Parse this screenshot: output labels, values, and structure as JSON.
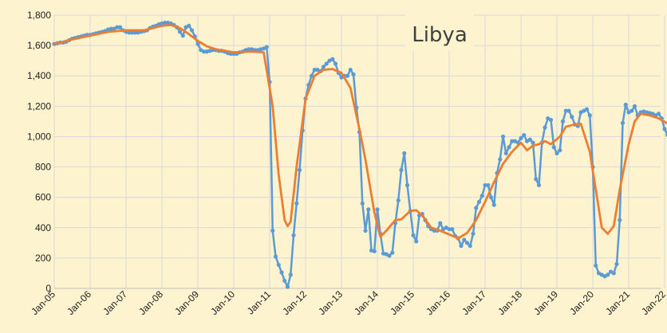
{
  "chart_data": {
    "type": "line",
    "title": "Libya",
    "xlabel": "",
    "ylabel": "",
    "ylim": [
      0,
      1800
    ],
    "yticks": [
      0,
      200,
      400,
      600,
      800,
      1000,
      1200,
      1400,
      1600,
      1800
    ],
    "ytick_labels": [
      "0",
      "200",
      "400",
      "600",
      "800",
      "1,000",
      "1,200",
      "1,400",
      "1,600",
      "1,800"
    ],
    "x_range": [
      "2005-01",
      "2022-06"
    ],
    "xtick_labels": [
      "Jan-05",
      "Jan-06",
      "Jan-07",
      "Jan-08",
      "Jan-09",
      "Jan-10",
      "Jan-11",
      "Jan-12",
      "Jan-13",
      "Jan-14",
      "Jan-15",
      "Jan-16",
      "Jan-17",
      "Jan-18",
      "Jan-19",
      "Jan-20",
      "Jan-21",
      "Jan-22"
    ],
    "grid": true,
    "legend": "none",
    "series": [
      {
        "color": "#5b9bd5",
        "markers": true,
        "points": [
          [
            "2005-01",
            1610
          ],
          [
            "2005-02",
            1615
          ],
          [
            "2005-03",
            1620
          ],
          [
            "2005-04",
            1620
          ],
          [
            "2005-05",
            1625
          ],
          [
            "2005-06",
            1635
          ],
          [
            "2005-07",
            1645
          ],
          [
            "2005-08",
            1650
          ],
          [
            "2005-09",
            1655
          ],
          [
            "2005-10",
            1660
          ],
          [
            "2005-11",
            1665
          ],
          [
            "2005-12",
            1670
          ],
          [
            "2006-01",
            1670
          ],
          [
            "2006-02",
            1675
          ],
          [
            "2006-03",
            1680
          ],
          [
            "2006-04",
            1685
          ],
          [
            "2006-05",
            1690
          ],
          [
            "2006-06",
            1695
          ],
          [
            "2006-07",
            1705
          ],
          [
            "2006-08",
            1710
          ],
          [
            "2006-09",
            1710
          ],
          [
            "2006-10",
            1720
          ],
          [
            "2006-11",
            1720
          ],
          [
            "2006-12",
            1700
          ],
          [
            "2007-01",
            1690
          ],
          [
            "2007-02",
            1685
          ],
          [
            "2007-03",
            1685
          ],
          [
            "2007-04",
            1685
          ],
          [
            "2007-05",
            1685
          ],
          [
            "2007-06",
            1690
          ],
          [
            "2007-07",
            1695
          ],
          [
            "2007-08",
            1700
          ],
          [
            "2007-09",
            1715
          ],
          [
            "2007-10",
            1725
          ],
          [
            "2007-11",
            1730
          ],
          [
            "2007-12",
            1740
          ],
          [
            "2008-01",
            1745
          ],
          [
            "2008-02",
            1750
          ],
          [
            "2008-03",
            1750
          ],
          [
            "2008-04",
            1745
          ],
          [
            "2008-05",
            1735
          ],
          [
            "2008-06",
            1720
          ],
          [
            "2008-07",
            1690
          ],
          [
            "2008-08",
            1665
          ],
          [
            "2008-09",
            1720
          ],
          [
            "2008-10",
            1730
          ],
          [
            "2008-11",
            1700
          ],
          [
            "2008-12",
            1660
          ],
          [
            "2009-01",
            1610
          ],
          [
            "2009-02",
            1570
          ],
          [
            "2009-03",
            1560
          ],
          [
            "2009-04",
            1560
          ],
          [
            "2009-05",
            1565
          ],
          [
            "2009-06",
            1570
          ],
          [
            "2009-07",
            1570
          ],
          [
            "2009-08",
            1565
          ],
          [
            "2009-09",
            1565
          ],
          [
            "2009-10",
            1560
          ],
          [
            "2009-11",
            1550
          ],
          [
            "2009-12",
            1545
          ],
          [
            "2010-01",
            1545
          ],
          [
            "2010-02",
            1545
          ],
          [
            "2010-03",
            1555
          ],
          [
            "2010-04",
            1560
          ],
          [
            "2010-05",
            1570
          ],
          [
            "2010-06",
            1575
          ],
          [
            "2010-07",
            1575
          ],
          [
            "2010-08",
            1570
          ],
          [
            "2010-09",
            1570
          ],
          [
            "2010-10",
            1575
          ],
          [
            "2010-11",
            1580
          ],
          [
            "2010-12",
            1590
          ],
          [
            "2011-01",
            1360
          ],
          [
            "2011-02",
            380
          ],
          [
            "2011-03",
            210
          ],
          [
            "2011-04",
            155
          ],
          [
            "2011-05",
            105
          ],
          [
            "2011-06",
            50
          ],
          [
            "2011-07",
            10
          ],
          [
            "2011-08",
            90
          ],
          [
            "2011-09",
            350
          ],
          [
            "2011-10",
            560
          ],
          [
            "2011-11",
            780
          ],
          [
            "2011-12",
            1040
          ],
          [
            "2012-01",
            1250
          ],
          [
            "2012-02",
            1340
          ],
          [
            "2012-03",
            1400
          ],
          [
            "2012-04",
            1440
          ],
          [
            "2012-05",
            1440
          ],
          [
            "2012-06",
            1430
          ],
          [
            "2012-07",
            1460
          ],
          [
            "2012-08",
            1480
          ],
          [
            "2012-09",
            1500
          ],
          [
            "2012-10",
            1510
          ],
          [
            "2012-11",
            1480
          ],
          [
            "2012-12",
            1420
          ],
          [
            "2013-01",
            1390
          ],
          [
            "2013-02",
            1400
          ],
          [
            "2013-03",
            1400
          ],
          [
            "2013-04",
            1440
          ],
          [
            "2013-05",
            1410
          ],
          [
            "2013-06",
            1190
          ],
          [
            "2013-07",
            1030
          ],
          [
            "2013-08",
            560
          ],
          [
            "2013-09",
            380
          ],
          [
            "2013-10",
            520
          ],
          [
            "2013-11",
            250
          ],
          [
            "2013-12",
            245
          ],
          [
            "2014-01",
            520
          ],
          [
            "2014-02",
            360
          ],
          [
            "2014-03",
            230
          ],
          [
            "2014-04",
            225
          ],
          [
            "2014-05",
            215
          ],
          [
            "2014-06",
            235
          ],
          [
            "2014-07",
            430
          ],
          [
            "2014-08",
            580
          ],
          [
            "2014-09",
            780
          ],
          [
            "2014-10",
            890
          ],
          [
            "2014-11",
            680
          ],
          [
            "2014-12",
            510
          ],
          [
            "2015-01",
            350
          ],
          [
            "2015-02",
            310
          ],
          [
            "2015-03",
            480
          ],
          [
            "2015-04",
            490
          ],
          [
            "2015-05",
            450
          ],
          [
            "2015-06",
            410
          ],
          [
            "2015-07",
            390
          ],
          [
            "2015-08",
            380
          ],
          [
            "2015-09",
            380
          ],
          [
            "2015-10",
            430
          ],
          [
            "2015-11",
            390
          ],
          [
            "2015-12",
            400
          ],
          [
            "2016-01",
            390
          ],
          [
            "2016-02",
            390
          ],
          [
            "2016-03",
            345
          ],
          [
            "2016-04",
            330
          ],
          [
            "2016-05",
            280
          ],
          [
            "2016-06",
            320
          ],
          [
            "2016-07",
            300
          ],
          [
            "2016-08",
            280
          ],
          [
            "2016-09",
            360
          ],
          [
            "2016-10",
            530
          ],
          [
            "2016-11",
            570
          ],
          [
            "2016-12",
            610
          ],
          [
            "2017-01",
            680
          ],
          [
            "2017-02",
            680
          ],
          [
            "2017-03",
            600
          ],
          [
            "2017-04",
            550
          ],
          [
            "2017-05",
            760
          ],
          [
            "2017-06",
            850
          ],
          [
            "2017-07",
            1000
          ],
          [
            "2017-08",
            890
          ],
          [
            "2017-09",
            930
          ],
          [
            "2017-10",
            970
          ],
          [
            "2017-11",
            970
          ],
          [
            "2017-12",
            960
          ],
          [
            "2018-01",
            990
          ],
          [
            "2018-02",
            1010
          ],
          [
            "2018-03",
            970
          ],
          [
            "2018-04",
            980
          ],
          [
            "2018-05",
            960
          ],
          [
            "2018-06",
            720
          ],
          [
            "2018-07",
            680
          ],
          [
            "2018-08",
            960
          ],
          [
            "2018-09",
            1060
          ],
          [
            "2018-10",
            1120
          ],
          [
            "2018-11",
            1110
          ],
          [
            "2018-12",
            930
          ],
          [
            "2019-01",
            890
          ],
          [
            "2019-02",
            910
          ],
          [
            "2019-03",
            1100
          ],
          [
            "2019-04",
            1170
          ],
          [
            "2019-05",
            1170
          ],
          [
            "2019-06",
            1130
          ],
          [
            "2019-07",
            1080
          ],
          [
            "2019-08",
            1070
          ],
          [
            "2019-09",
            1160
          ],
          [
            "2019-10",
            1170
          ],
          [
            "2019-11",
            1180
          ],
          [
            "2019-12",
            1140
          ],
          [
            "2020-01",
            800
          ],
          [
            "2020-02",
            150
          ],
          [
            "2020-03",
            100
          ],
          [
            "2020-04",
            90
          ],
          [
            "2020-05",
            80
          ],
          [
            "2020-06",
            90
          ],
          [
            "2020-07",
            110
          ],
          [
            "2020-08",
            100
          ],
          [
            "2020-09",
            160
          ],
          [
            "2020-10",
            450
          ],
          [
            "2020-11",
            1090
          ],
          [
            "2020-12",
            1210
          ],
          [
            "2021-01",
            1160
          ],
          [
            "2021-02",
            1170
          ],
          [
            "2021-03",
            1200
          ],
          [
            "2021-04",
            1140
          ],
          [
            "2021-05",
            1160
          ],
          [
            "2021-06",
            1165
          ],
          [
            "2021-07",
            1160
          ],
          [
            "2021-08",
            1155
          ],
          [
            "2021-09",
            1150
          ],
          [
            "2021-10",
            1140
          ],
          [
            "2021-11",
            1150
          ],
          [
            "2021-12",
            1120
          ],
          [
            "2022-01",
            1050
          ],
          [
            "2022-02",
            1010
          ],
          [
            "2022-03",
            1110
          ],
          [
            "2022-04",
            1080
          ],
          [
            "2022-05",
            920
          ]
        ]
      },
      {
        "color": "#ed7d31",
        "markers": false,
        "points": [
          [
            "2005-01",
            1610
          ],
          [
            "2005-07",
            1640
          ],
          [
            "2006-01",
            1665
          ],
          [
            "2006-07",
            1690
          ],
          [
            "2007-01",
            1700
          ],
          [
            "2007-07",
            1700
          ],
          [
            "2008-01",
            1730
          ],
          [
            "2008-04",
            1735
          ],
          [
            "2008-07",
            1715
          ],
          [
            "2008-10",
            1675
          ],
          [
            "2009-01",
            1630
          ],
          [
            "2009-04",
            1595
          ],
          [
            "2009-07",
            1575
          ],
          [
            "2010-01",
            1555
          ],
          [
            "2010-07",
            1560
          ],
          [
            "2010-11",
            1555
          ],
          [
            "2011-02",
            1200
          ],
          [
            "2011-04",
            750
          ],
          [
            "2011-06",
            450
          ],
          [
            "2011-07",
            410
          ],
          [
            "2011-08",
            440
          ],
          [
            "2011-10",
            800
          ],
          [
            "2012-01",
            1250
          ],
          [
            "2012-04",
            1400
          ],
          [
            "2012-07",
            1440
          ],
          [
            "2012-10",
            1445
          ],
          [
            "2013-01",
            1420
          ],
          [
            "2013-04",
            1320
          ],
          [
            "2013-07",
            1050
          ],
          [
            "2013-09",
            850
          ],
          [
            "2013-12",
            500
          ],
          [
            "2014-02",
            340
          ],
          [
            "2014-04",
            380
          ],
          [
            "2014-07",
            450
          ],
          [
            "2014-09",
            455
          ],
          [
            "2014-12",
            510
          ],
          [
            "2015-02",
            515
          ],
          [
            "2015-04",
            480
          ],
          [
            "2015-07",
            400
          ],
          [
            "2015-10",
            380
          ],
          [
            "2016-01",
            355
          ],
          [
            "2016-04",
            330
          ],
          [
            "2016-07",
            365
          ],
          [
            "2016-10",
            450
          ],
          [
            "2017-01",
            570
          ],
          [
            "2017-04",
            700
          ],
          [
            "2017-07",
            820
          ],
          [
            "2017-10",
            900
          ],
          [
            "2018-01",
            960
          ],
          [
            "2018-03",
            910
          ],
          [
            "2018-05",
            940
          ],
          [
            "2018-07",
            950
          ],
          [
            "2018-09",
            970
          ],
          [
            "2018-11",
            950
          ],
          [
            "2019-02",
            1000
          ],
          [
            "2019-04",
            1065
          ],
          [
            "2019-07",
            1080
          ],
          [
            "2019-09",
            1085
          ],
          [
            "2019-12",
            900
          ],
          [
            "2020-02",
            650
          ],
          [
            "2020-04",
            400
          ],
          [
            "2020-06",
            360
          ],
          [
            "2020-08",
            410
          ],
          [
            "2020-10",
            650
          ],
          [
            "2021-01",
            950
          ],
          [
            "2021-03",
            1100
          ],
          [
            "2021-05",
            1150
          ],
          [
            "2021-08",
            1140
          ],
          [
            "2021-11",
            1120
          ],
          [
            "2022-02",
            1085
          ],
          [
            "2022-04",
            1060
          ],
          [
            "2022-05",
            1050
          ]
        ]
      }
    ]
  }
}
